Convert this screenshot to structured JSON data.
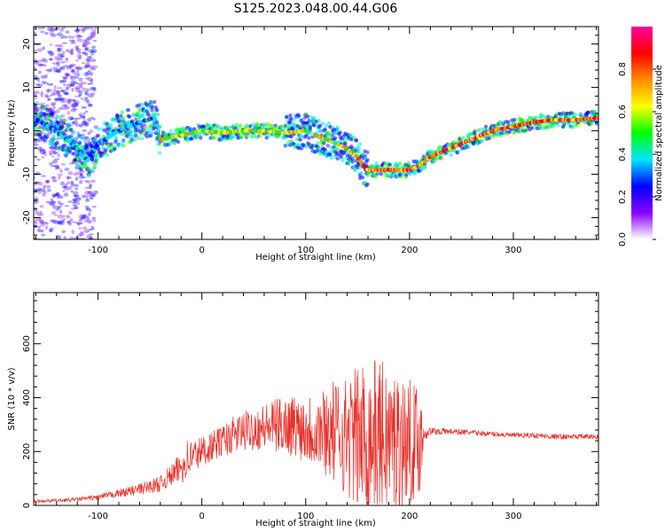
{
  "title": "S125.2023.048.00.44.G06",
  "chart_data": [
    {
      "type": "heatmap",
      "xlabel": "Height of straight line (km)",
      "ylabel": "Frequency (Hz)",
      "xlim": [
        -162,
        382
      ],
      "ylim": [
        -25,
        24
      ],
      "xticks": [
        -100,
        0,
        100,
        200,
        300
      ],
      "xtick_labels": [
        "-100",
        "0",
        "100",
        "200",
        "300"
      ],
      "yticks": [
        -20,
        -10,
        0,
        10,
        20
      ],
      "ytick_labels": [
        "-20",
        "-10",
        "0",
        "10",
        "20"
      ],
      "ridge": {
        "x": [
          -162,
          -140,
          -120,
          -110,
          -100,
          -80,
          -60,
          -45,
          -40,
          -20,
          0,
          20,
          40,
          60,
          80,
          100,
          110,
          120,
          130,
          140,
          150,
          155,
          160,
          170,
          180,
          190,
          200,
          210,
          220,
          240,
          260,
          280,
          300,
          320,
          340,
          360,
          382
        ],
        "freq": [
          3,
          0,
          -4,
          -7,
          -3,
          0,
          2,
          3,
          -2,
          -1,
          0,
          -0.5,
          0,
          0,
          -0.5,
          0,
          -1,
          -2,
          -3,
          -4,
          -6,
          -8,
          -9,
          -9,
          -9,
          -9,
          -9,
          -8,
          -6,
          -4,
          -2,
          0,
          1,
          2,
          2.5,
          2.5,
          3
        ]
      },
      "colorbar": {
        "label": "Normalized spectral amplitude",
        "range": [
          0,
          1
        ],
        "ticks": [
          0.0,
          0.2,
          0.4,
          0.6,
          0.8
        ],
        "tick_labels": [
          "0.0",
          "0.2",
          "0.4",
          "0.6",
          "0.8"
        ],
        "colors": [
          "#ffffff",
          "#8a00ff",
          "#0000ff",
          "#00e5ff",
          "#00ff00",
          "#ffff00",
          "#ff8c00",
          "#ff0000",
          "#ff00a0"
        ]
      }
    },
    {
      "type": "line",
      "xlabel": "Height of straight line (km)",
      "ylabel": "SNR (10 * v/v)",
      "xlim": [
        -162,
        382
      ],
      "ylim": [
        0,
        790
      ],
      "xticks": [
        -100,
        0,
        100,
        200,
        300
      ],
      "xtick_labels": [
        "-100",
        "0",
        "100",
        "200",
        "300"
      ],
      "yticks": [
        0,
        200,
        400,
        600
      ],
      "ytick_labels": [
        "0",
        "200",
        "400",
        "600"
      ],
      "color": "#e8302a",
      "series": [
        {
          "x": [
            -162,
            -140,
            -120,
            -100,
            -80,
            -60,
            -40,
            -30,
            -20,
            -15,
            -10,
            0,
            10,
            20,
            30,
            40,
            50,
            60,
            70,
            80,
            90,
            100,
            110,
            120,
            130,
            140,
            150,
            160,
            170,
            180,
            190,
            200,
            210,
            215,
            220,
            240,
            260,
            280,
            300,
            320,
            340,
            360,
            382
          ],
          "mean": [
            15,
            18,
            22,
            30,
            45,
            60,
            80,
            110,
            140,
            170,
            180,
            200,
            220,
            240,
            260,
            275,
            285,
            290,
            295,
            300,
            295,
            290,
            280,
            280,
            270,
            260,
            250,
            250,
            250,
            240,
            240,
            240,
            240,
            270,
            275,
            275,
            270,
            265,
            260,
            260,
            255,
            255,
            255
          ],
          "spread": [
            6,
            6,
            8,
            10,
            15,
            22,
            30,
            40,
            60,
            80,
            70,
            60,
            55,
            60,
            70,
            75,
            80,
            90,
            100,
            110,
            120,
            130,
            150,
            170,
            200,
            230,
            270,
            300,
            300,
            290,
            260,
            230,
            200,
            30,
            15,
            12,
            10,
            10,
            10,
            10,
            10,
            10,
            10
          ]
        }
      ]
    }
  ]
}
